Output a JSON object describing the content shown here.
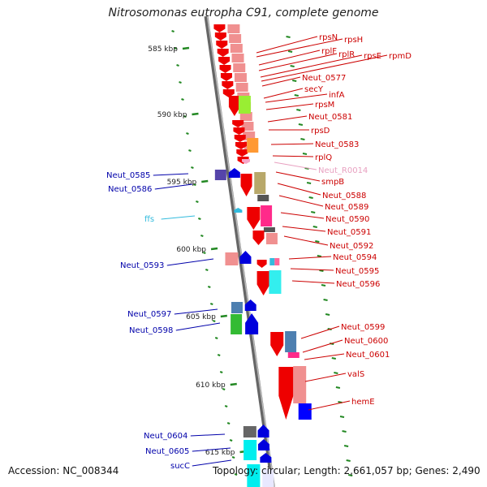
{
  "title": "Nitrosomonas eutropha C91, complete genome",
  "footer": {
    "accession": "Accession: NC_008344",
    "summary": "Topology: circular; Length: 2,661,057 bp; Genes: 2,490"
  },
  "colors": {
    "forward_arrow": "#ee0000",
    "reverse_arrow": "#0000dd",
    "right_label": "#cc0000",
    "left_label": "#0000aa",
    "rna_label": "#e8a0c0",
    "trna_label": "#33bbdd",
    "tick": "#228822",
    "backbone": "#888888"
  },
  "ticks": [
    {
      "label": "585 kbp",
      "kbp": 585
    },
    {
      "label": "590 kbp",
      "kbp": 590
    },
    {
      "label": "595 kbp",
      "kbp": 595
    },
    {
      "label": "600 kbp",
      "kbp": 600
    },
    {
      "label": "605 kbp",
      "kbp": 605
    },
    {
      "label": "610 kbp",
      "kbp": 610
    },
    {
      "label": "615 kbp",
      "kbp": 615
    }
  ],
  "right_labels": [
    {
      "text": "rpsN",
      "type": "gene"
    },
    {
      "text": "rpsH",
      "type": "gene"
    },
    {
      "text": "rplF",
      "type": "gene"
    },
    {
      "text": "rplR",
      "type": "gene"
    },
    {
      "text": "rpsE",
      "type": "gene"
    },
    {
      "text": "rpmD",
      "type": "gene"
    },
    {
      "text": "Neut_0577",
      "type": "gene"
    },
    {
      "text": "secY",
      "type": "gene"
    },
    {
      "text": "infA",
      "type": "gene"
    },
    {
      "text": "rpsM",
      "type": "gene"
    },
    {
      "text": "Neut_0581",
      "type": "gene"
    },
    {
      "text": "rpsD",
      "type": "gene"
    },
    {
      "text": "Neut_0583",
      "type": "gene"
    },
    {
      "text": "rplQ",
      "type": "gene"
    },
    {
      "text": "Neut_R0014",
      "type": "rna"
    },
    {
      "text": "smpB",
      "type": "gene"
    },
    {
      "text": "Neut_0588",
      "type": "gene"
    },
    {
      "text": "Neut_0589",
      "type": "gene"
    },
    {
      "text": "Neut_0590",
      "type": "gene"
    },
    {
      "text": "Neut_0591",
      "type": "gene"
    },
    {
      "text": "Neut_0592",
      "type": "gene"
    },
    {
      "text": "Neut_0594",
      "type": "gene"
    },
    {
      "text": "Neut_0595",
      "type": "gene"
    },
    {
      "text": "Neut_0596",
      "type": "gene"
    },
    {
      "text": "Neut_0599",
      "type": "gene"
    },
    {
      "text": "Neut_0600",
      "type": "gene"
    },
    {
      "text": "Neut_0601",
      "type": "gene"
    },
    {
      "text": "valS",
      "type": "gene"
    },
    {
      "text": "hemE",
      "type": "gene"
    }
  ],
  "left_labels": [
    {
      "text": "Neut_0585",
      "type": "gene"
    },
    {
      "text": "Neut_0586",
      "type": "gene"
    },
    {
      "text": "ffs",
      "type": "trna"
    },
    {
      "text": "Neut_0593",
      "type": "gene"
    },
    {
      "text": "Neut_0597",
      "type": "gene"
    },
    {
      "text": "Neut_0598",
      "type": "gene"
    },
    {
      "text": "Neut_0604",
      "type": "gene"
    },
    {
      "text": "Neut_0605",
      "type": "gene"
    },
    {
      "text": "sucC",
      "type": "gene"
    }
  ]
}
